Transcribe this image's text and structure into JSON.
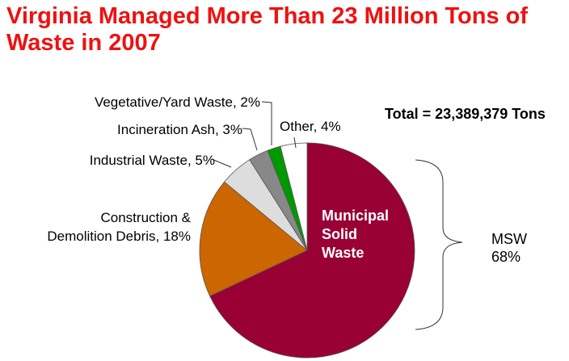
{
  "title": "Virginia Managed More Than 23 Million Tons of Waste in 2007",
  "total_label": "Total = 23,389,379 Tons",
  "msw_slice_label": [
    "Municipal",
    "Solid",
    "Waste"
  ],
  "msw_brace_label": [
    "MSW",
    "68%"
  ],
  "chart_data": {
    "type": "pie",
    "title": "Virginia Managed More Than 23 Million Tons of Waste in 2007",
    "total": "23,389,379 Tons",
    "slices": [
      {
        "label": "Municipal Solid Waste",
        "value": 68,
        "color": "#990033"
      },
      {
        "label": "Construction & Demolition Debris",
        "value": 18,
        "color": "#cc6600"
      },
      {
        "label": "Industrial Waste",
        "value": 5,
        "color": "#dddddd"
      },
      {
        "label": "Incineration Ash",
        "value": 3,
        "color": "#888888"
      },
      {
        "label": "Vegetative/Yard Waste",
        "value": 2,
        "color": "#009900"
      },
      {
        "label": "Other",
        "value": 4,
        "color": "#ffffff"
      }
    ],
    "slice_labels": [
      "",
      "Construction &\nDemolition Debris, 18%",
      "Industrial Waste, 5%",
      "Incineration Ash, 3%",
      "Vegetative/Yard Waste, 2%",
      "Other, 4%"
    ]
  }
}
